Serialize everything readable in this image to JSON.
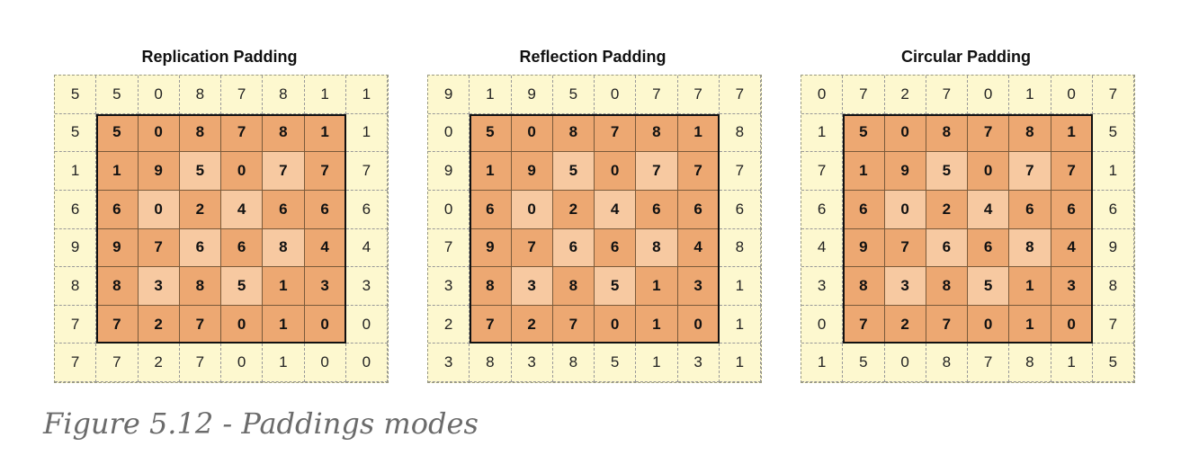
{
  "caption": "Figure 5.12 - Paddings modes",
  "colors": {
    "pad_fill": "#fdf8cf",
    "inner_dark": "#eda872",
    "inner_light": "#f7c9a1",
    "frame": "#111111"
  },
  "panels": [
    {
      "title": "Replication Padding",
      "grid": [
        [
          "5",
          "5",
          "0",
          "8",
          "7",
          "8",
          "1",
          "1"
        ],
        [
          "5",
          "5",
          "0",
          "8",
          "7",
          "8",
          "1",
          "1"
        ],
        [
          "1",
          "1",
          "9",
          "5",
          "0",
          "7",
          "7",
          "7"
        ],
        [
          "6",
          "6",
          "0",
          "2",
          "4",
          "6",
          "6",
          "6"
        ],
        [
          "9",
          "9",
          "7",
          "6",
          "6",
          "8",
          "4",
          "4"
        ],
        [
          "8",
          "8",
          "3",
          "8",
          "5",
          "1",
          "3",
          "3"
        ],
        [
          "7",
          "7",
          "2",
          "7",
          "0",
          "1",
          "0",
          "0"
        ],
        [
          "7",
          "7",
          "2",
          "7",
          "0",
          "1",
          "0",
          "0"
        ]
      ]
    },
    {
      "title": "Reflection Padding",
      "grid": [
        [
          "9",
          "1",
          "9",
          "5",
          "0",
          "7",
          "7",
          "7"
        ],
        [
          "0",
          "5",
          "0",
          "8",
          "7",
          "8",
          "1",
          "8"
        ],
        [
          "9",
          "1",
          "9",
          "5",
          "0",
          "7",
          "7",
          "7"
        ],
        [
          "0",
          "6",
          "0",
          "2",
          "4",
          "6",
          "6",
          "6"
        ],
        [
          "7",
          "9",
          "7",
          "6",
          "6",
          "8",
          "4",
          "8"
        ],
        [
          "3",
          "8",
          "3",
          "8",
          "5",
          "1",
          "3",
          "1"
        ],
        [
          "2",
          "7",
          "2",
          "7",
          "0",
          "1",
          "0",
          "1"
        ],
        [
          "3",
          "8",
          "3",
          "8",
          "5",
          "1",
          "3",
          "1"
        ]
      ]
    },
    {
      "title": "Circular Padding",
      "grid": [
        [
          "0",
          "7",
          "2",
          "7",
          "0",
          "1",
          "0",
          "7"
        ],
        [
          "1",
          "5",
          "0",
          "8",
          "7",
          "8",
          "1",
          "5"
        ],
        [
          "7",
          "1",
          "9",
          "5",
          "0",
          "7",
          "7",
          "1"
        ],
        [
          "6",
          "6",
          "0",
          "2",
          "4",
          "6",
          "6",
          "6"
        ],
        [
          "4",
          "9",
          "7",
          "6",
          "6",
          "8",
          "4",
          "9"
        ],
        [
          "3",
          "8",
          "3",
          "8",
          "5",
          "1",
          "3",
          "8"
        ],
        [
          "0",
          "7",
          "2",
          "7",
          "0",
          "1",
          "0",
          "7"
        ],
        [
          "1",
          "5",
          "0",
          "8",
          "7",
          "8",
          "1",
          "5"
        ]
      ]
    }
  ]
}
